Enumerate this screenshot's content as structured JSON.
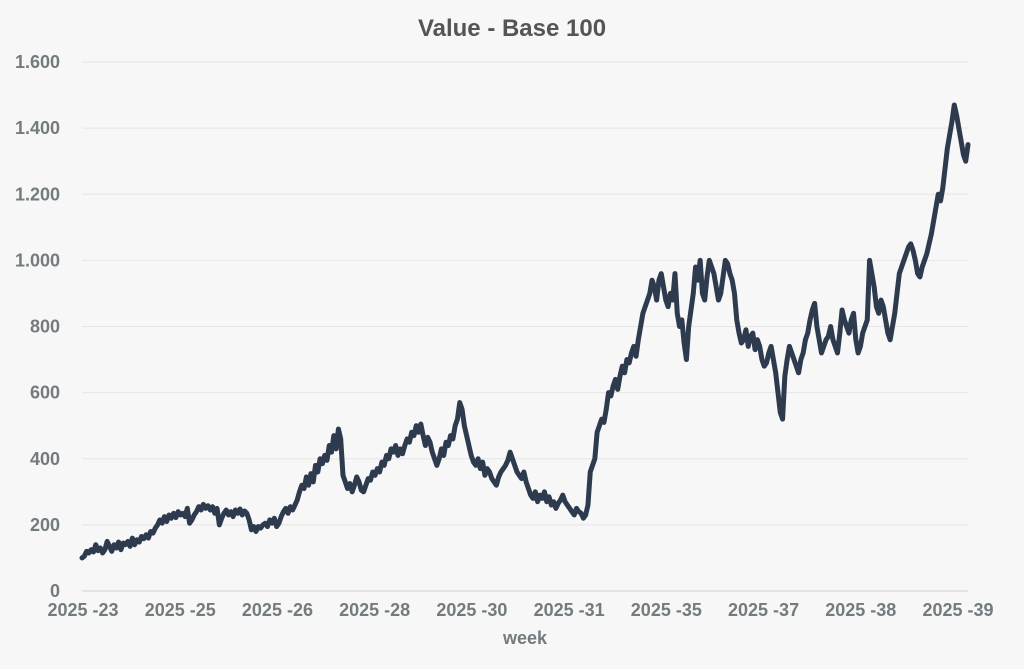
{
  "chart_data": {
    "type": "line",
    "title": "Value - Base 100",
    "xlabel": "week",
    "ylabel": "",
    "ylim": [
      0,
      1600
    ],
    "yticks": [
      0,
      200,
      400,
      600,
      800,
      1000,
      1200,
      1400,
      1600
    ],
    "ytick_labels": [
      "0",
      "200",
      "400",
      "600",
      "800",
      "1.000",
      "1.200",
      "1.400",
      "1.600"
    ],
    "xtick_labels": [
      "2025 -23",
      "2025 -25",
      "2025 -26",
      "2025 -28",
      "2025 -30",
      "2025 -31",
      "2025 -35",
      "2025 -37",
      "2025 -38",
      "2025 -39"
    ],
    "grid": true,
    "legend": "none",
    "colors": {
      "line": "#2e3b4e",
      "grid": "#e6e6e6",
      "text": "#737b7f",
      "title": "#555555",
      "background": "#f7f7f7"
    },
    "series": [
      {
        "values": [
          100,
          105,
          120,
          115,
          125,
          118,
          140,
          122,
          130,
          115,
          125,
          150,
          135,
          120,
          140,
          130,
          148,
          125,
          145,
          140,
          150,
          135,
          160,
          140,
          155,
          148,
          165,
          158,
          170,
          160,
          180,
          175,
          190,
          200,
          215,
          205,
          225,
          210,
          230,
          220,
          235,
          222,
          240,
          230,
          235,
          225,
          250,
          205,
          215,
          230,
          240,
          255,
          245,
          262,
          250,
          258,
          245,
          255,
          235,
          250,
          200,
          220,
          235,
          245,
          230,
          240,
          225,
          245,
          235,
          248,
          230,
          242,
          235,
          215,
          185,
          195,
          180,
          195,
          190,
          200,
          205,
          195,
          215,
          205,
          220,
          195,
          205,
          225,
          240,
          250,
          235,
          255,
          245,
          260,
          275,
          300,
          320,
          310,
          345,
          320,
          355,
          330,
          380,
          360,
          400,
          385,
          410,
          395,
          440,
          420,
          470,
          430,
          490,
          460,
          350,
          330,
          310,
          325,
          300,
          320,
          345,
          330,
          305,
          300,
          320,
          340,
          335,
          360,
          350,
          370,
          360,
          390,
          380,
          410,
          400,
          430,
          420,
          440,
          410,
          430,
          415,
          440,
          460,
          450,
          480,
          470,
          500,
          480,
          505,
          470,
          440,
          465,
          450,
          420,
          400,
          380,
          400,
          430,
          410,
          450,
          440,
          470,
          460,
          500,
          520,
          570,
          550,
          500,
          470,
          440,
          410,
          390,
          380,
          400,
          370,
          390,
          350,
          370,
          360,
          340,
          330,
          320,
          345,
          360,
          370,
          380,
          395,
          420,
          400,
          380,
          360,
          350,
          340,
          360,
          330,
          310,
          290,
          280,
          300,
          270,
          290,
          280,
          300,
          270,
          285,
          260,
          270,
          250,
          265,
          275,
          290,
          270,
          260,
          250,
          240,
          230,
          250,
          240,
          235,
          220,
          230,
          260,
          360,
          380,
          400,
          480,
          500,
          520,
          510,
          550,
          600,
          590,
          620,
          640,
          610,
          650,
          680,
          660,
          700,
          690,
          720,
          740,
          710,
          760,
          800,
          840,
          860,
          880,
          900,
          940,
          920,
          880,
          940,
          960,
          920,
          880,
          860,
          900,
          880,
          960,
          840,
          800,
          820,
          750,
          700,
          800,
          850,
          900,
          980,
          940,
          1000,
          900,
          880,
          950,
          1000,
          980,
          960,
          920,
          880,
          900,
          950,
          1000,
          990,
          960,
          940,
          900,
          820,
          780,
          750,
          760,
          790,
          740,
          770,
          780,
          730,
          760,
          740,
          700,
          680,
          690,
          720,
          740,
          700,
          660,
          600,
          540,
          520,
          650,
          700,
          740,
          720,
          700,
          680,
          660,
          700,
          720,
          760,
          780,
          820,
          850,
          870,
          800,
          760,
          720,
          740,
          760,
          770,
          800,
          760,
          740,
          720,
          780,
          850,
          820,
          800,
          780,
          820,
          840,
          760,
          720,
          740,
          780,
          800,
          820,
          1000,
          960,
          920,
          860,
          840,
          880,
          860,
          820,
          780,
          760,
          800,
          840,
          900,
          960,
          980,
          1000,
          1020,
          1040,
          1050,
          1030,
          1000,
          960,
          950,
          980,
          1000,
          1020,
          1050,
          1080,
          1120,
          1160,
          1200,
          1180,
          1220,
          1280,
          1340,
          1380,
          1420,
          1470,
          1440,
          1400,
          1360,
          1320,
          1300,
          1350
        ]
      }
    ]
  }
}
